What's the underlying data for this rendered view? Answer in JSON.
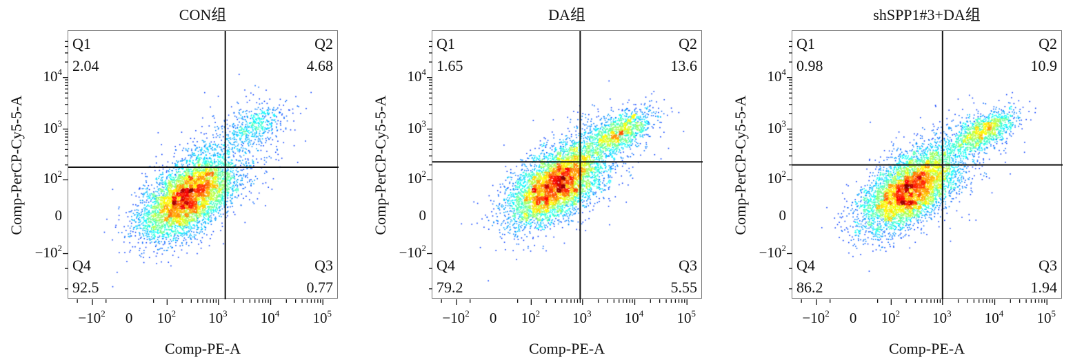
{
  "chart_data": [
    {
      "type": "scatter",
      "title": "CON组",
      "xlabel": "Comp-PE-A",
      "ylabel": "Comp-PerCP-Cy5-5-A",
      "x_ticks": [
        "−10²",
        "0",
        "10²",
        "10³",
        "10⁴",
        "10⁵"
      ],
      "y_ticks": [
        "10⁴",
        "10³",
        "10²",
        "0",
        "−10²"
      ],
      "gate": {
        "x": 1350,
        "y": 180
      },
      "quadrants": [
        {
          "name": "Q1",
          "value": "2.04"
        },
        {
          "name": "Q2",
          "value": "4.68"
        },
        {
          "name": "Q3",
          "value": "0.77"
        },
        {
          "name": "Q4",
          "value": "92.5"
        }
      ],
      "populations": [
        {
          "center_x": 250,
          "center_y": 40,
          "note": "main"
        },
        {
          "center_x": 5000,
          "center_y": 1200,
          "note": "Q2"
        }
      ]
    },
    {
      "type": "scatter",
      "title": "DA组",
      "xlabel": "Comp-PE-A",
      "ylabel": "Comp-PerCP-Cy5-5-A",
      "x_ticks": [
        "−10²",
        "0",
        "10²",
        "10³",
        "10⁴",
        "10⁵"
      ],
      "y_ticks": [
        "10⁴",
        "10³",
        "10²",
        "0",
        "−10²"
      ],
      "gate": {
        "x": 900,
        "y": 230
      },
      "quadrants": [
        {
          "name": "Q1",
          "value": "1.65"
        },
        {
          "name": "Q2",
          "value": "13.6"
        },
        {
          "name": "Q3",
          "value": "5.55"
        },
        {
          "name": "Q4",
          "value": "79.2"
        }
      ],
      "populations": [
        {
          "center_x": 300,
          "center_y": 80,
          "note": "main"
        },
        {
          "center_x": 5000,
          "center_y": 900,
          "note": "Q2"
        }
      ]
    },
    {
      "type": "scatter",
      "title": "shSPP1#3+DA组",
      "xlabel": "Comp-PE-A",
      "ylabel": "Comp-PerCP-Cy5-5-A",
      "x_ticks": [
        "−10²",
        "0",
        "10²",
        "10³",
        "10⁴",
        "10⁵"
      ],
      "y_ticks": [
        "10⁴",
        "10³",
        "10²",
        "0",
        "−10²"
      ],
      "gate": {
        "x": 1000,
        "y": 200
      },
      "quadrants": [
        {
          "name": "Q1",
          "value": "0.98"
        },
        {
          "name": "Q2",
          "value": "10.9"
        },
        {
          "name": "Q3",
          "value": "1.94"
        },
        {
          "name": "Q4",
          "value": "86.2"
        }
      ],
      "populations": [
        {
          "center_x": 220,
          "center_y": 60,
          "note": "main"
        },
        {
          "center_x": 6000,
          "center_y": 900,
          "note": "Q2"
        }
      ]
    }
  ]
}
